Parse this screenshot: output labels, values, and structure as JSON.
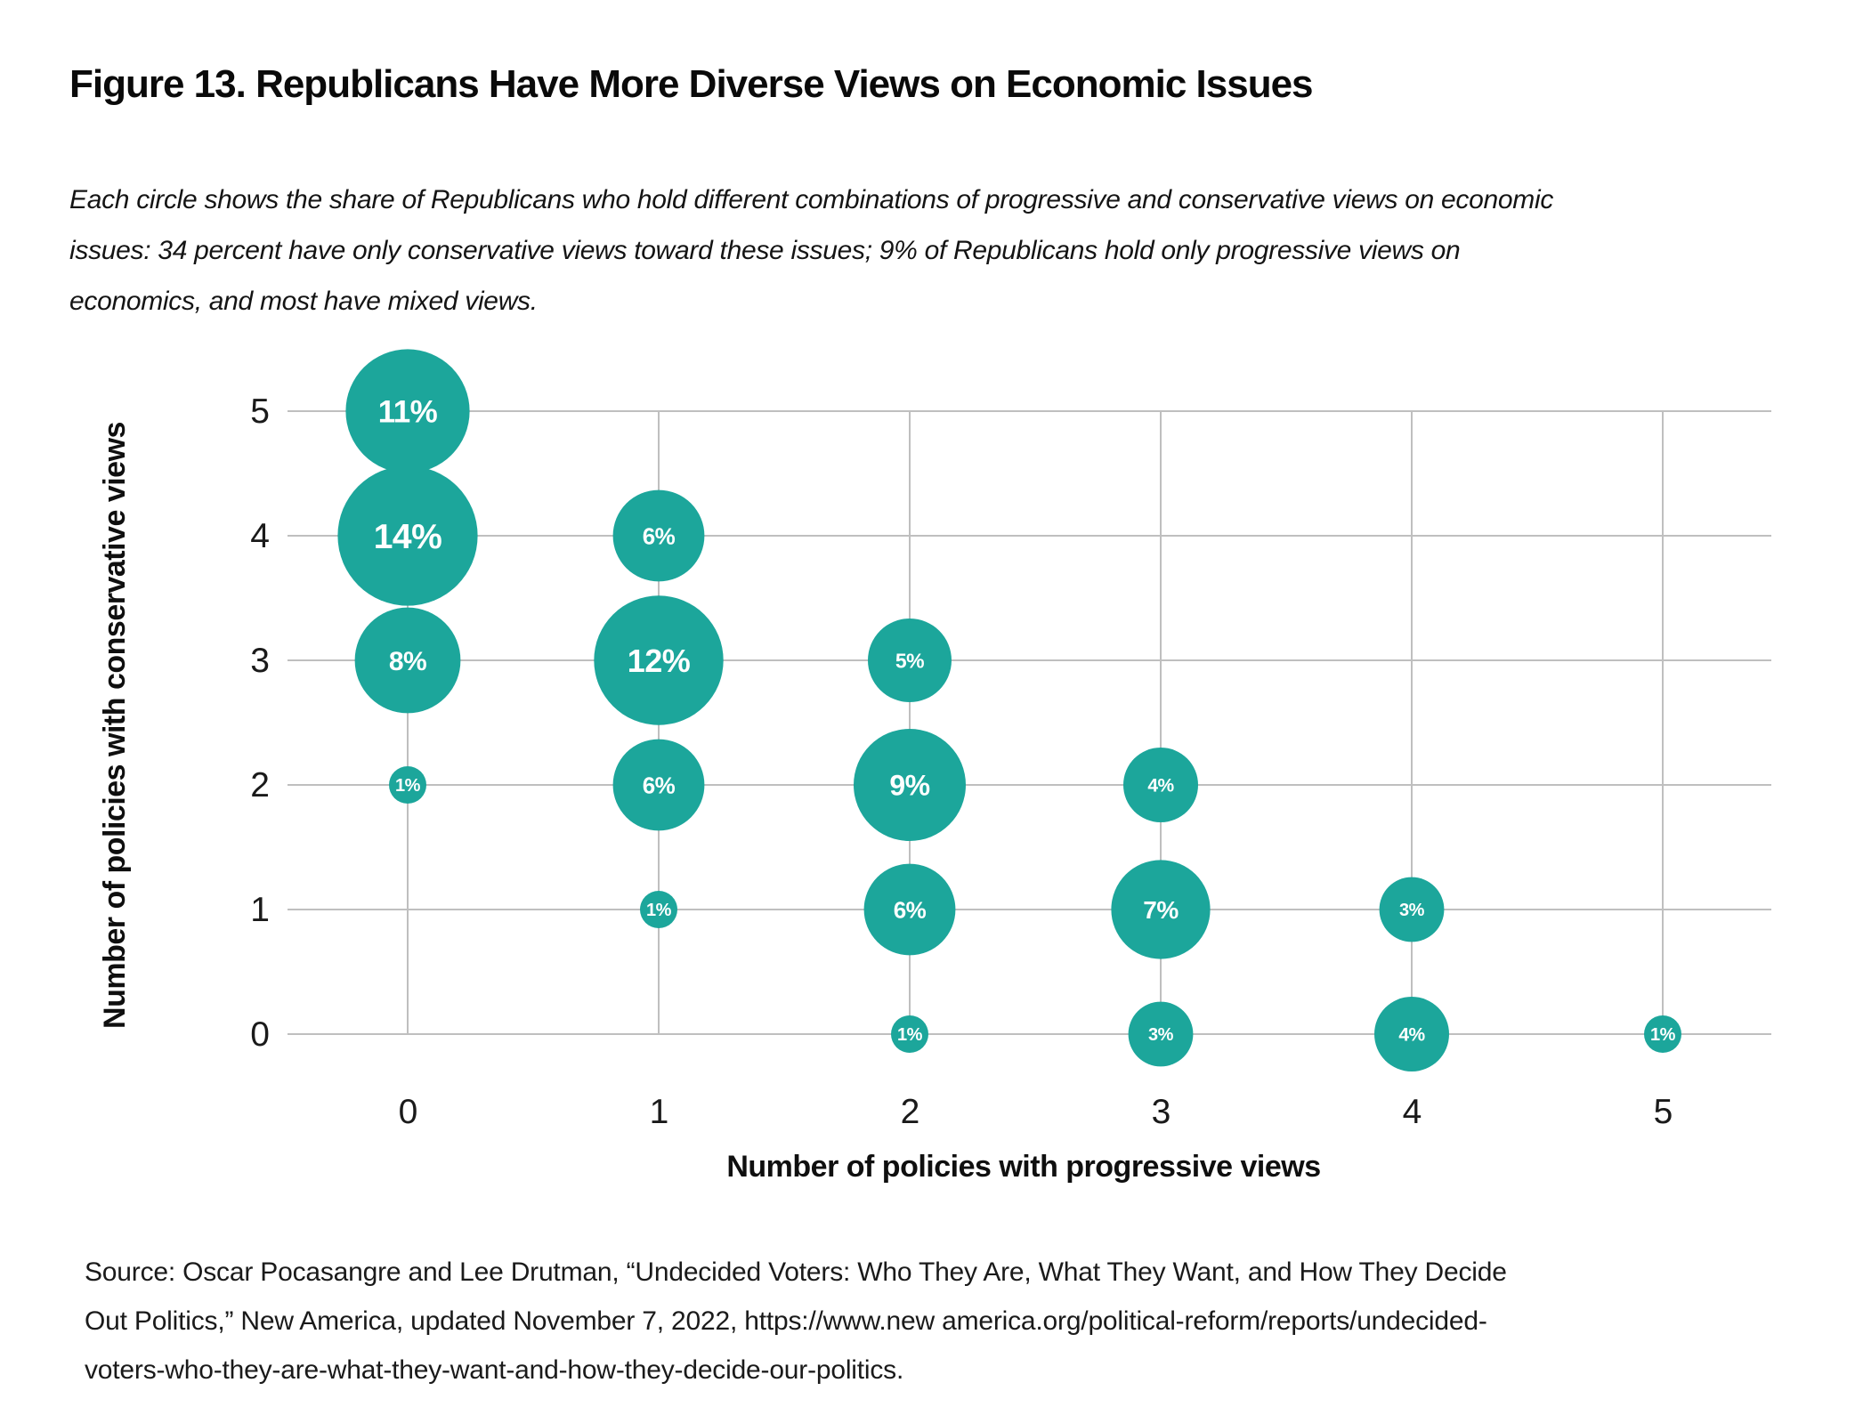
{
  "title": "Figure 13. Republicans Have More Diverse Views on Economic Issues",
  "subtitle_lines": [
    "Each circle shows the share of Republicans who hold different combinations of progressive and conservative views on economic",
    "issues: 34 percent have only conservative views toward these issues; 9% of Republicans hold only progressive views on",
    "economics, and most have mixed views."
  ],
  "source_lines": [
    "Source: Oscar Pocasangre and Lee Drutman, “Undecided Voters: Who They Are, What They Want, and How They Decide",
    "Out Politics,” New America, updated November 7, 2022, https://www.new america.org/political-reform/reports/undecided-",
    "voters-who-they-are-what-they-want-and-how-they-decide-our-politics."
  ],
  "chart_data": {
    "type": "scatter",
    "subtype": "bubble",
    "title": "",
    "xlabel": "Number of policies with progressive views",
    "ylabel": "Number of policies with conservative views",
    "x_ticks": [
      "0",
      "1",
      "2",
      "3",
      "4",
      "5"
    ],
    "y_ticks": [
      "0",
      "1",
      "2",
      "3",
      "4",
      "5"
    ],
    "xlim": [
      -0.5,
      5.5
    ],
    "ylim": [
      -0.5,
      5.5
    ],
    "grid": true,
    "size_encoding": "bubble area proportional to percent value",
    "bubble_color": "#1CA69B",
    "bubble_label_color": "#ffffff",
    "grid_color": "#bfbfbf",
    "tick_color": "#1a1a1a",
    "points": [
      {
        "x": 0,
        "y": 5,
        "value": 11,
        "label": "11%"
      },
      {
        "x": 0,
        "y": 4,
        "value": 14,
        "label": "14%"
      },
      {
        "x": 0,
        "y": 3,
        "value": 8,
        "label": "8%"
      },
      {
        "x": 0,
        "y": 2,
        "value": 1,
        "label": "1%"
      },
      {
        "x": 1,
        "y": 4,
        "value": 6,
        "label": "6%"
      },
      {
        "x": 1,
        "y": 3,
        "value": 12,
        "label": "12%"
      },
      {
        "x": 1,
        "y": 2,
        "value": 6,
        "label": "6%"
      },
      {
        "x": 1,
        "y": 1,
        "value": 1,
        "label": "1%"
      },
      {
        "x": 2,
        "y": 3,
        "value": 5,
        "label": "5%"
      },
      {
        "x": 2,
        "y": 2,
        "value": 9,
        "label": "9%"
      },
      {
        "x": 2,
        "y": 1,
        "value": 6,
        "label": "6%"
      },
      {
        "x": 2,
        "y": 0,
        "value": 1,
        "label": "1%"
      },
      {
        "x": 3,
        "y": 2,
        "value": 4,
        "label": "4%"
      },
      {
        "x": 3,
        "y": 1,
        "value": 7,
        "label": "7%"
      },
      {
        "x": 3,
        "y": 0,
        "value": 3,
        "label": "3%"
      },
      {
        "x": 4,
        "y": 1,
        "value": 3,
        "label": "3%"
      },
      {
        "x": 4,
        "y": 0,
        "value": 4,
        "label": "4%"
      },
      {
        "x": 5,
        "y": 0,
        "value": 1,
        "label": "1%"
      }
    ]
  }
}
